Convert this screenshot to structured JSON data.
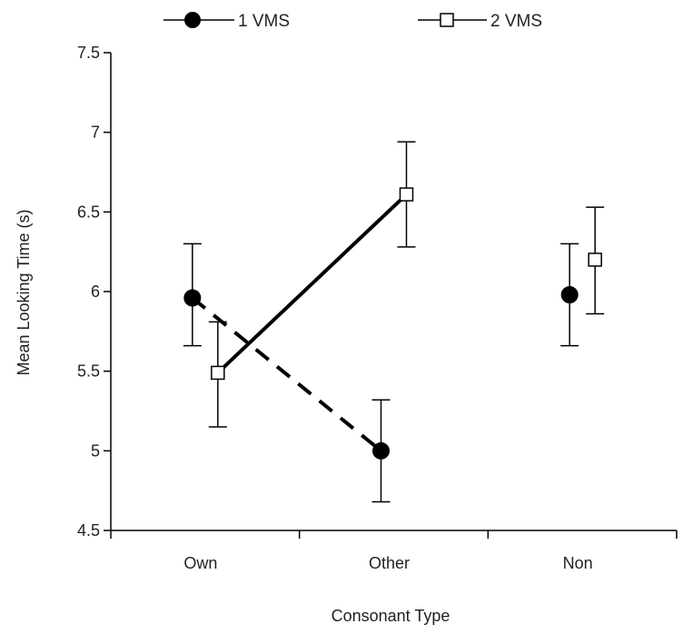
{
  "chart_data": {
    "type": "line",
    "title": "",
    "xlabel": "Consonant Type",
    "ylabel": "Mean Looking Time (s)",
    "categories": [
      "Own",
      "Other",
      "Non"
    ],
    "ylim": [
      4.5,
      7.5
    ],
    "yticks": [
      "4.5",
      "5",
      "5.5",
      "6",
      "6.5",
      "7",
      "7.5"
    ],
    "legend": {
      "position": "top",
      "entries": [
        "1 VMS",
        "2 VMS"
      ]
    },
    "grid": false,
    "series": [
      {
        "name": "1 VMS",
        "marker": "filled-circle",
        "line_style": "dashed",
        "connected_categories": [
          "Own",
          "Other"
        ],
        "values": [
          5.96,
          5.0,
          5.98
        ],
        "error_low": [
          5.66,
          4.68,
          5.66
        ],
        "error_high": [
          6.3,
          5.32,
          6.3
        ]
      },
      {
        "name": "2 VMS",
        "marker": "open-square",
        "line_style": "solid",
        "connected_categories": [
          "Own",
          "Other"
        ],
        "values": [
          5.49,
          6.61,
          6.2
        ],
        "error_low": [
          5.15,
          6.28,
          5.86
        ],
        "error_high": [
          5.81,
          6.94,
          6.53
        ]
      }
    ],
    "colors": {
      "line": "#000000",
      "marker_fill_open": "#ffffff",
      "axis": "#000000"
    }
  }
}
